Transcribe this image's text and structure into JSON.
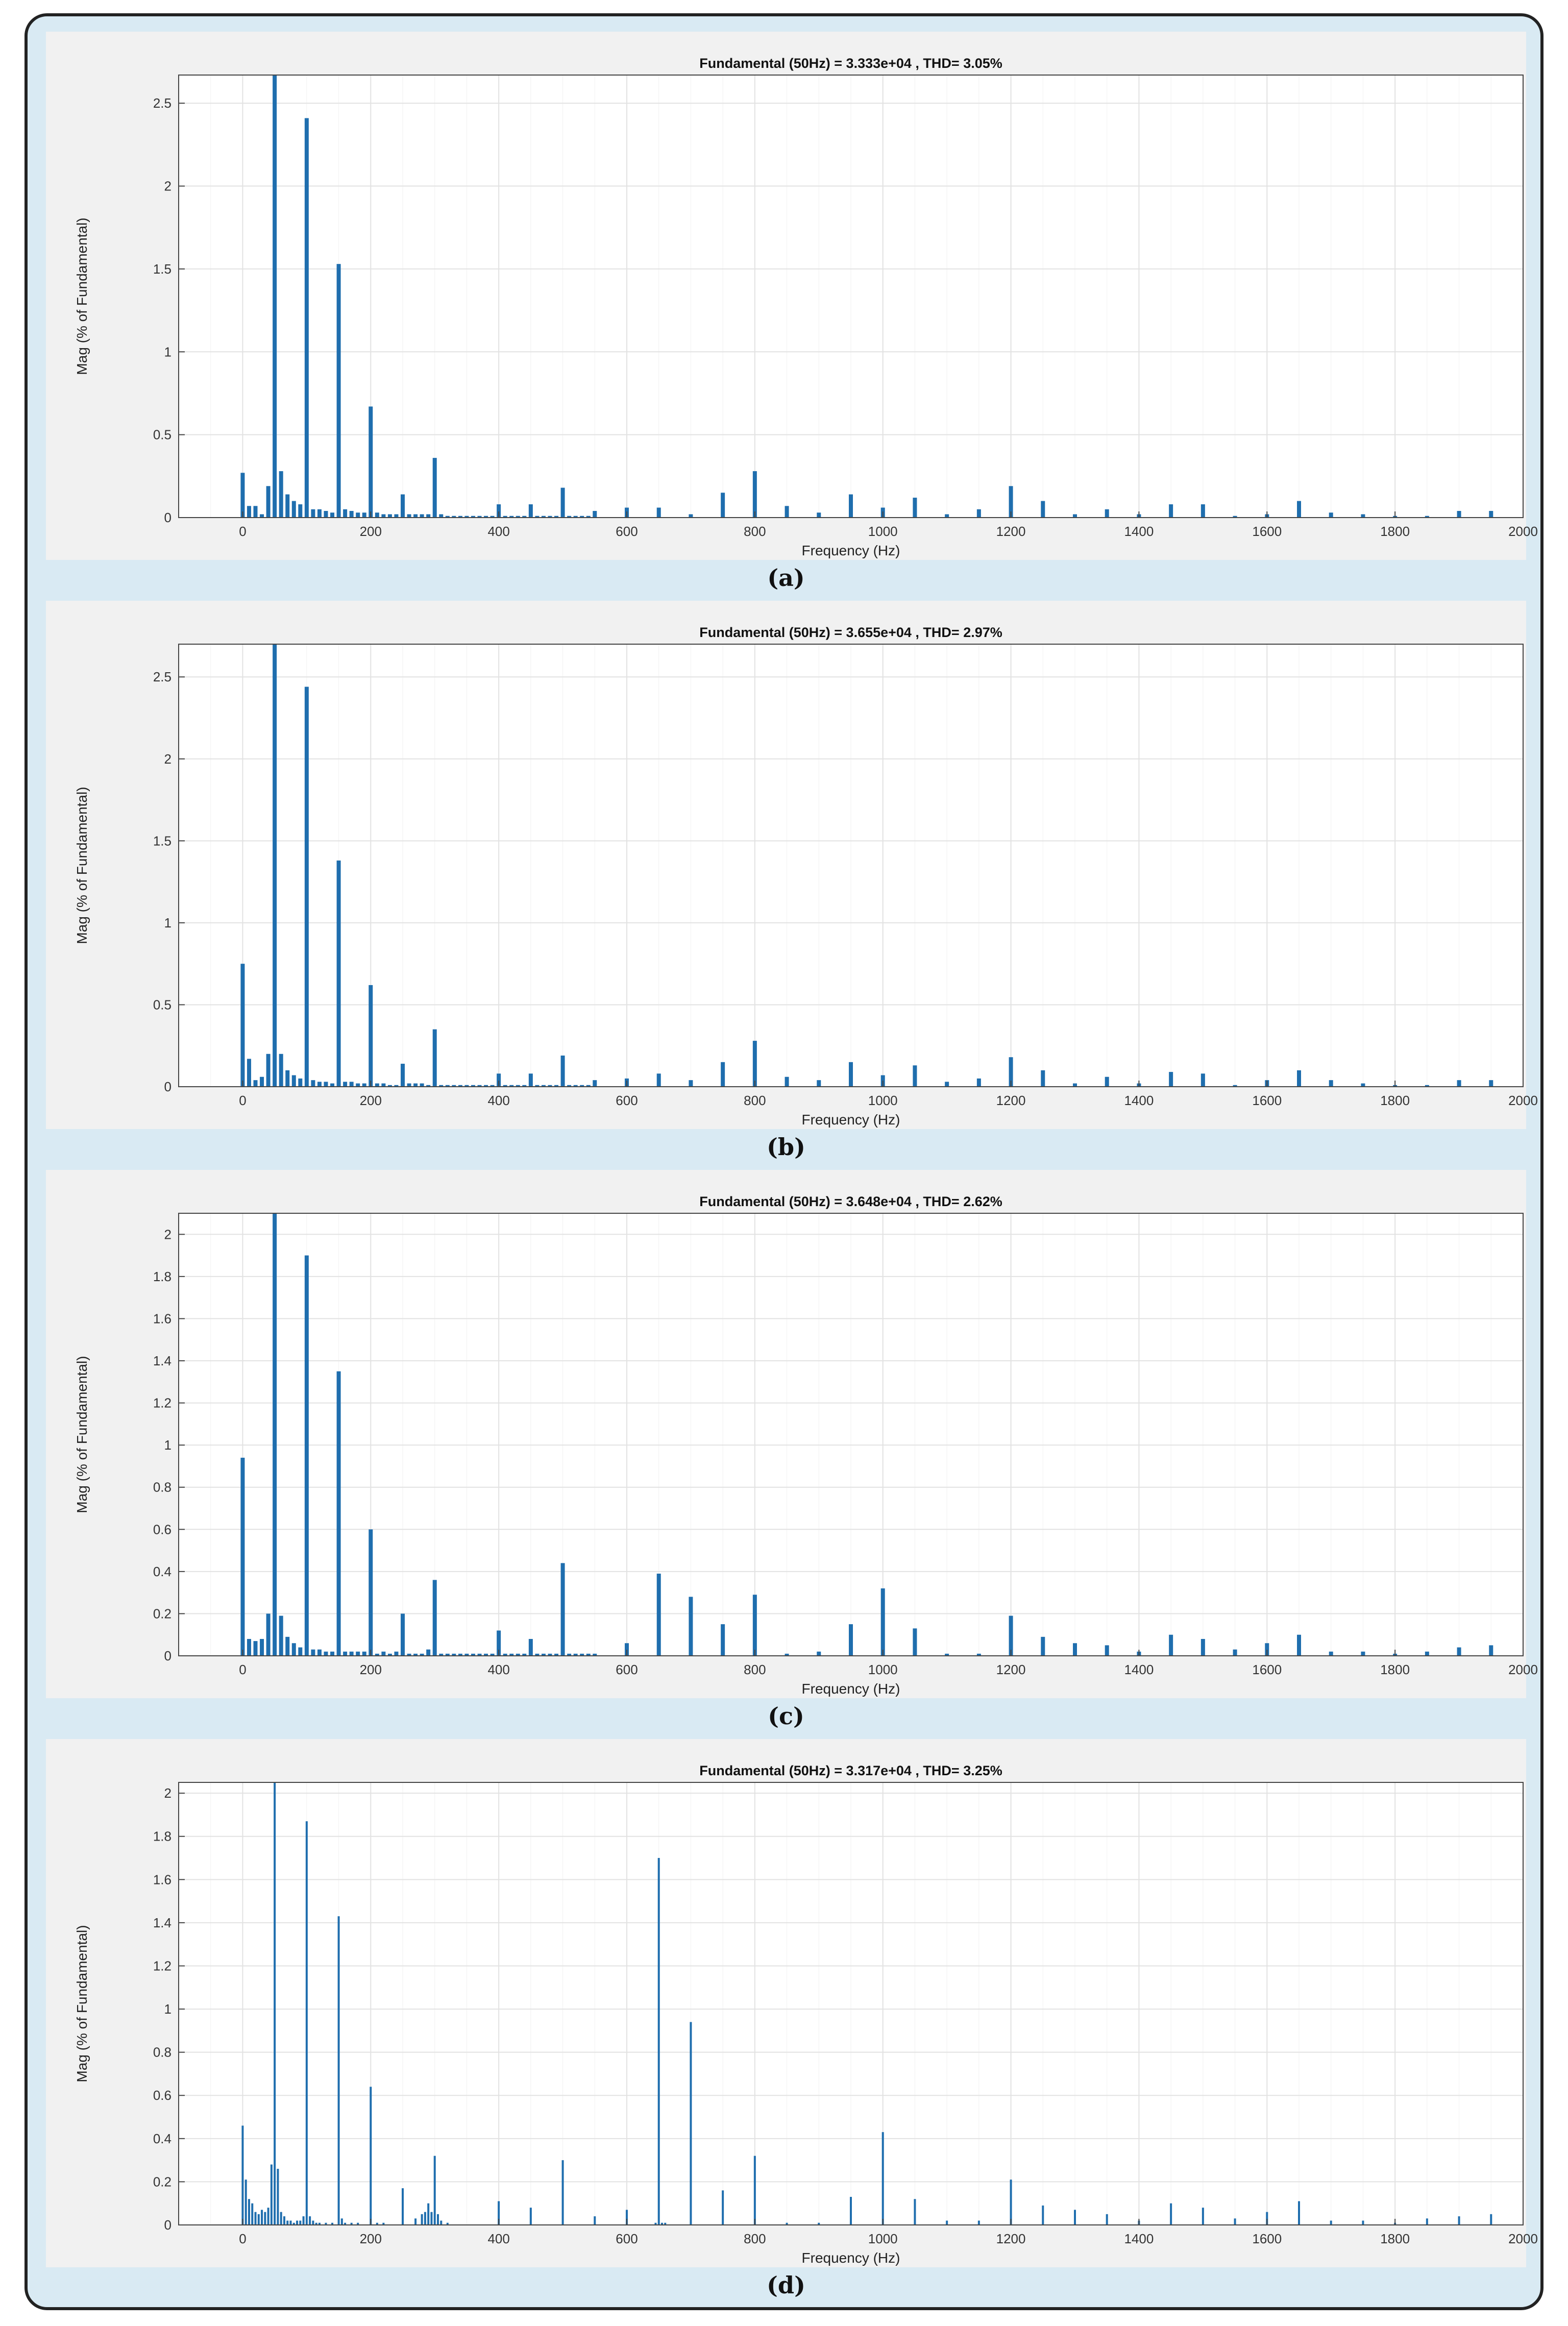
{
  "panels": [
    {
      "caption": "(a)",
      "chart_data": {
        "type": "bar",
        "title": "Fundamental (50Hz) = 3.333e+04 , THD= 3.05%",
        "xlabel": "Frequency (Hz)",
        "ylabel": "Mag (% of Fundamental)",
        "xlim": [
          -100,
          2000
        ],
        "ylim": [
          0,
          2.67
        ],
        "xticks": [
          0,
          200,
          400,
          600,
          800,
          1000,
          1200,
          1400,
          1600,
          1800,
          2000
        ],
        "yticks": [
          0,
          0.5,
          1,
          1.5,
          2,
          2.5
        ],
        "ytick_labels": [
          "0",
          "0.5",
          "1",
          "1.5",
          "2",
          "2.5"
        ],
        "grid": true,
        "x": [
          0,
          10,
          20,
          30,
          40,
          50,
          60,
          70,
          80,
          90,
          100,
          110,
          120,
          130,
          140,
          150,
          160,
          170,
          180,
          190,
          200,
          210,
          220,
          230,
          240,
          250,
          260,
          270,
          280,
          290,
          300,
          310,
          320,
          330,
          340,
          350,
          360,
          370,
          380,
          390,
          400,
          410,
          420,
          430,
          440,
          450,
          460,
          470,
          480,
          490,
          500,
          510,
          520,
          530,
          540,
          550,
          600,
          650,
          700,
          750,
          800,
          850,
          900,
          950,
          1000,
          1050,
          1100,
          1150,
          1200,
          1250,
          1300,
          1350,
          1400,
          1450,
          1500,
          1550,
          1600,
          1650,
          1700,
          1750,
          1800,
          1850,
          1900,
          1950
        ],
        "values": [
          0.27,
          0.07,
          0.07,
          0.02,
          0.19,
          2.67,
          0.28,
          0.14,
          0.1,
          0.08,
          2.41,
          0.05,
          0.05,
          0.04,
          0.03,
          1.53,
          0.05,
          0.04,
          0.03,
          0.03,
          0.67,
          0.03,
          0.02,
          0.02,
          0.02,
          0.14,
          0.02,
          0.02,
          0.02,
          0.02,
          0.36,
          0.02,
          0.01,
          0.01,
          0.01,
          0.01,
          0.01,
          0.01,
          0.01,
          0.01,
          0.08,
          0.01,
          0.01,
          0.01,
          0.01,
          0.08,
          0.01,
          0.01,
          0.01,
          0.01,
          0.18,
          0.01,
          0.01,
          0.01,
          0.01,
          0.04,
          0.06,
          0.06,
          0.02,
          0.15,
          0.28,
          0.07,
          0.03,
          0.14,
          0.06,
          0.12,
          0.02,
          0.05,
          0.19,
          0.1,
          0.02,
          0.05,
          0.02,
          0.08,
          0.08,
          0.01,
          0.02,
          0.1,
          0.03,
          0.02,
          0.01,
          0.01,
          0.04,
          0.04
        ]
      }
    },
    {
      "caption": "(b)",
      "chart_data": {
        "type": "bar",
        "title": "Fundamental (50Hz) = 3.655e+04 , THD= 2.97%",
        "xlabel": "Frequency (Hz)",
        "ylabel": "Mag (% of Fundamental)",
        "xlim": [
          -100,
          2000
        ],
        "ylim": [
          0,
          2.7
        ],
        "xticks": [
          0,
          200,
          400,
          600,
          800,
          1000,
          1200,
          1400,
          1600,
          1800,
          2000
        ],
        "yticks": [
          0,
          0.5,
          1,
          1.5,
          2,
          2.5
        ],
        "ytick_labels": [
          "0",
          "0.5",
          "1",
          "1.5",
          "2",
          "2.5"
        ],
        "grid": true,
        "x": [
          0,
          10,
          20,
          30,
          40,
          50,
          60,
          70,
          80,
          90,
          100,
          110,
          120,
          130,
          140,
          150,
          160,
          170,
          180,
          190,
          200,
          210,
          220,
          230,
          240,
          250,
          260,
          270,
          280,
          290,
          300,
          310,
          320,
          330,
          340,
          350,
          360,
          370,
          380,
          390,
          400,
          410,
          420,
          430,
          440,
          450,
          460,
          470,
          480,
          490,
          500,
          510,
          520,
          530,
          540,
          550,
          600,
          650,
          700,
          750,
          800,
          850,
          900,
          950,
          1000,
          1050,
          1100,
          1150,
          1200,
          1250,
          1300,
          1350,
          1400,
          1450,
          1500,
          1550,
          1600,
          1650,
          1700,
          1750,
          1800,
          1850,
          1900,
          1950
        ],
        "values": [
          0.75,
          0.17,
          0.04,
          0.06,
          0.2,
          2.7,
          0.2,
          0.1,
          0.07,
          0.05,
          2.44,
          0.04,
          0.03,
          0.03,
          0.02,
          1.38,
          0.03,
          0.03,
          0.02,
          0.02,
          0.62,
          0.02,
          0.02,
          0.01,
          0.01,
          0.14,
          0.02,
          0.02,
          0.02,
          0.01,
          0.35,
          0.01,
          0.01,
          0.01,
          0.01,
          0.01,
          0.01,
          0.01,
          0.01,
          0.01,
          0.08,
          0.01,
          0.01,
          0.01,
          0.01,
          0.08,
          0.01,
          0.01,
          0.01,
          0.01,
          0.19,
          0.01,
          0.01,
          0.01,
          0.01,
          0.04,
          0.05,
          0.08,
          0.04,
          0.15,
          0.28,
          0.06,
          0.04,
          0.15,
          0.07,
          0.13,
          0.03,
          0.05,
          0.18,
          0.1,
          0.02,
          0.06,
          0.02,
          0.09,
          0.08,
          0.01,
          0.04,
          0.1,
          0.04,
          0.02,
          0.01,
          0.01,
          0.04,
          0.04
        ]
      }
    },
    {
      "caption": "(c)",
      "chart_data": {
        "type": "bar",
        "title": "Fundamental (50Hz) = 3.648e+04 , THD= 2.62%",
        "xlabel": "Frequency (Hz)",
        "ylabel": "Mag (% of Fundamental)",
        "xlim": [
          -100,
          2000
        ],
        "ylim": [
          0,
          2.1
        ],
        "xticks": [
          0,
          200,
          400,
          600,
          800,
          1000,
          1200,
          1400,
          1600,
          1800,
          2000
        ],
        "yticks": [
          0,
          0.2,
          0.4,
          0.6,
          0.8,
          1,
          1.2,
          1.4,
          1.6,
          1.8,
          2
        ],
        "ytick_labels": [
          "0",
          "0.2",
          "0.4",
          "0.6",
          "0.8",
          "1",
          "1.2",
          "1.4",
          "1.6",
          "1.8",
          "2"
        ],
        "grid": true,
        "x": [
          0,
          10,
          20,
          30,
          40,
          50,
          60,
          70,
          80,
          90,
          100,
          110,
          120,
          130,
          140,
          150,
          160,
          170,
          180,
          190,
          200,
          210,
          220,
          230,
          240,
          250,
          260,
          270,
          280,
          290,
          300,
          310,
          320,
          330,
          340,
          350,
          360,
          370,
          380,
          390,
          400,
          410,
          420,
          430,
          440,
          450,
          460,
          470,
          480,
          490,
          500,
          510,
          520,
          530,
          540,
          550,
          600,
          650,
          700,
          750,
          800,
          850,
          900,
          950,
          1000,
          1050,
          1100,
          1150,
          1200,
          1250,
          1300,
          1350,
          1400,
          1450,
          1500,
          1550,
          1600,
          1650,
          1700,
          1750,
          1800,
          1850,
          1900,
          1950
        ],
        "values": [
          0.94,
          0.08,
          0.07,
          0.08,
          0.2,
          2.1,
          0.19,
          0.09,
          0.06,
          0.04,
          1.9,
          0.03,
          0.03,
          0.02,
          0.02,
          1.35,
          0.02,
          0.02,
          0.02,
          0.02,
          0.6,
          0.01,
          0.02,
          0.01,
          0.02,
          0.2,
          0.01,
          0.01,
          0.01,
          0.03,
          0.36,
          0.01,
          0.01,
          0.01,
          0.01,
          0.01,
          0.01,
          0.01,
          0.01,
          0.01,
          0.12,
          0.01,
          0.01,
          0.01,
          0.01,
          0.08,
          0.01,
          0.01,
          0.01,
          0.01,
          0.44,
          0.01,
          0.01,
          0.01,
          0.01,
          0.01,
          0.06,
          0.39,
          0.28,
          0.15,
          0.29,
          0.01,
          0.02,
          0.15,
          0.32,
          0.13,
          0.01,
          0.01,
          0.19,
          0.09,
          0.06,
          0.05,
          0.02,
          0.1,
          0.08,
          0.03,
          0.06,
          0.1,
          0.02,
          0.02,
          0.01,
          0.02,
          0.04,
          0.05
        ]
      }
    },
    {
      "caption": "(d)",
      "chart_data": {
        "type": "bar",
        "title": "Fundamental (50Hz) = 3.317e+04 , THD= 3.25%",
        "xlabel": "Frequency (Hz)",
        "ylabel": "Mag (% of Fundamental)",
        "xlim": [
          -100,
          2000
        ],
        "ylim": [
          0,
          2.05
        ],
        "xticks": [
          0,
          200,
          400,
          600,
          800,
          1000,
          1200,
          1400,
          1600,
          1800,
          2000
        ],
        "yticks": [
          0,
          0.2,
          0.4,
          0.6,
          0.8,
          1,
          1.2,
          1.4,
          1.6,
          1.8,
          2
        ],
        "ytick_labels": [
          "0",
          "0.2",
          "0.4",
          "0.6",
          "0.8",
          "1",
          "1.2",
          "1.4",
          "1.6",
          "1.8",
          "2"
        ],
        "grid": true,
        "x": [
          0,
          5,
          10,
          15,
          20,
          25,
          30,
          35,
          40,
          45,
          50,
          55,
          60,
          65,
          70,
          75,
          80,
          85,
          90,
          95,
          100,
          105,
          110,
          115,
          120,
          130,
          140,
          150,
          155,
          160,
          170,
          180,
          200,
          210,
          220,
          250,
          270,
          280,
          285,
          290,
          295,
          300,
          305,
          310,
          320,
          400,
          450,
          500,
          550,
          600,
          645,
          650,
          655,
          660,
          700,
          750,
          800,
          850,
          900,
          950,
          1000,
          1050,
          1100,
          1150,
          1200,
          1250,
          1300,
          1350,
          1400,
          1450,
          1500,
          1550,
          1600,
          1650,
          1700,
          1750,
          1800,
          1850,
          1900,
          1950
        ],
        "values": [
          0.46,
          0.21,
          0.12,
          0.1,
          0.06,
          0.05,
          0.07,
          0.06,
          0.08,
          0.28,
          2.05,
          0.26,
          0.06,
          0.04,
          0.02,
          0.02,
          0.01,
          0.02,
          0.02,
          0.04,
          1.87,
          0.04,
          0.02,
          0.01,
          0.01,
          0.01,
          0.01,
          1.43,
          0.03,
          0.01,
          0.01,
          0.01,
          0.64,
          0.01,
          0.01,
          0.17,
          0.03,
          0.05,
          0.06,
          0.1,
          0.06,
          0.32,
          0.05,
          0.02,
          0.01,
          0.11,
          0.08,
          0.3,
          0.04,
          0.07,
          0.01,
          1.7,
          0.01,
          0.01,
          0.94,
          0.16,
          0.32,
          0.01,
          0.01,
          0.13,
          0.43,
          0.12,
          0.02,
          0.02,
          0.21,
          0.09,
          0.07,
          0.05,
          0.02,
          0.1,
          0.08,
          0.03,
          0.06,
          0.11,
          0.02,
          0.02,
          0.01,
          0.03,
          0.04,
          0.05
        ]
      }
    }
  ]
}
